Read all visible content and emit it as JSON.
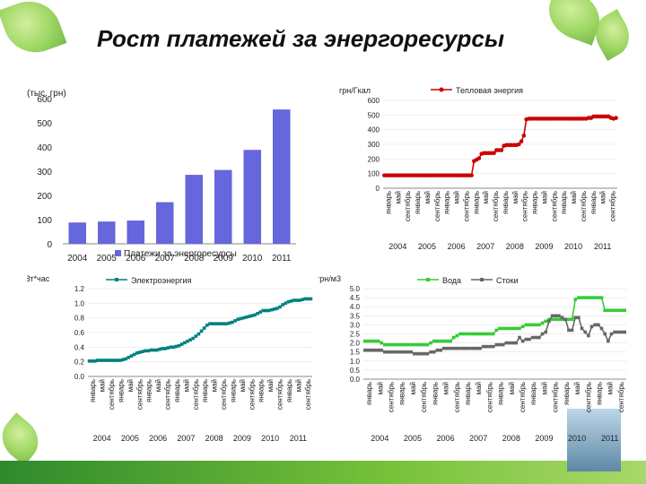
{
  "title": "Рост  платежей за энергоресурсы",
  "colors": {
    "bar": "#6666dd",
    "heat": "#cc0000",
    "elec": "#008080",
    "water": "#33cc33",
    "sewer": "#666666"
  },
  "chart_data": [
    {
      "type": "bar",
      "ylabel": "(тыс. грн)",
      "ylim": [
        0,
        600
      ],
      "yticks": [
        "0",
        "100",
        "200",
        "300",
        "400",
        "500",
        "600"
      ],
      "categories": [
        "2004",
        "2005",
        "2006",
        "2007",
        "2008",
        "2009",
        "2010",
        "2011"
      ],
      "series": [
        {
          "name": "Платежи за энергоресурсы",
          "values": [
            88,
            92,
            96,
            172,
            285,
            305,
            388,
            555
          ]
        }
      ]
    },
    {
      "type": "line",
      "ylabel": "грн/Гкал",
      "ylim": [
        0,
        600
      ],
      "yticks": [
        "0",
        "100",
        "200",
        "300",
        "400",
        "500",
        "600"
      ],
      "months": [
        "январь",
        "май",
        "сентябрь"
      ],
      "years": [
        "2004",
        "2005",
        "2006",
        "2007",
        "2008",
        "2009",
        "2010",
        "2011"
      ],
      "series": [
        {
          "name": "Тепловая энергия",
          "values": [
            88,
            88,
            88,
            88,
            88,
            88,
            88,
            88,
            88,
            88,
            88,
            88,
            88,
            88,
            88,
            88,
            88,
            88,
            88,
            88,
            88,
            88,
            88,
            88,
            88,
            88,
            88,
            88,
            88,
            88,
            88,
            88,
            88,
            88,
            88,
            88,
            185,
            195,
            205,
            235,
            240,
            240,
            240,
            240,
            240,
            260,
            260,
            260,
            290,
            295,
            295,
            295,
            295,
            295,
            300,
            320,
            360,
            470,
            475,
            475,
            475,
            475,
            475,
            475,
            475,
            475,
            475,
            475,
            475,
            475,
            475,
            475,
            475,
            475,
            475,
            475,
            475,
            475,
            475,
            475,
            475,
            475,
            480,
            480,
            490,
            490,
            490,
            490,
            490,
            490,
            490,
            480,
            475,
            480
          ]
        }
      ]
    },
    {
      "type": "line",
      "ylabel": "грн/кВт*час",
      "ylim": [
        0,
        1.2
      ],
      "yticks": [
        "0.0",
        "0.2",
        "0.4",
        "0.6",
        "0.8",
        "1.0",
        "1.2"
      ],
      "months": [
        "январь",
        "май",
        "сентябрь"
      ],
      "years": [
        "2004",
        "2005",
        "2006",
        "2007",
        "2008",
        "2009",
        "2010",
        "2011"
      ],
      "series": [
        {
          "name": "Электроэнергия",
          "values": [
            0.21,
            0.21,
            0.21,
            0.22,
            0.22,
            0.22,
            0.22,
            0.22,
            0.22,
            0.22,
            0.22,
            0.22,
            0.23,
            0.24,
            0.26,
            0.28,
            0.3,
            0.32,
            0.33,
            0.34,
            0.35,
            0.35,
            0.36,
            0.36,
            0.36,
            0.37,
            0.38,
            0.38,
            0.39,
            0.4,
            0.4,
            0.41,
            0.42,
            0.44,
            0.46,
            0.48,
            0.5,
            0.52,
            0.55,
            0.58,
            0.62,
            0.66,
            0.7,
            0.72,
            0.72,
            0.72,
            0.72,
            0.72,
            0.72,
            0.72,
            0.73,
            0.74,
            0.76,
            0.78,
            0.79,
            0.8,
            0.81,
            0.82,
            0.83,
            0.84,
            0.86,
            0.88,
            0.9,
            0.9,
            0.9,
            0.91,
            0.92,
            0.93,
            0.95,
            0.98,
            1.0,
            1.02,
            1.03,
            1.04,
            1.04,
            1.04,
            1.05,
            1.06,
            1.06,
            1.06
          ]
        }
      ]
    },
    {
      "type": "line",
      "ylabel": "грн/м3",
      "ylim": [
        0,
        5
      ],
      "yticks": [
        "0.0",
        "0.5",
        "1.0",
        "1.5",
        "2.0",
        "2.5",
        "3.0",
        "3.5",
        "4.0",
        "4.5",
        "5.0"
      ],
      "months": [
        "январь",
        "май",
        "сентябрь"
      ],
      "years": [
        "2004",
        "2005",
        "2006",
        "2007",
        "2008",
        "2009",
        "2010",
        "2011"
      ],
      "series": [
        {
          "name": "Вода",
          "values": [
            2.1,
            2.1,
            2.1,
            2.1,
            2.1,
            2.0,
            1.9,
            1.9,
            1.9,
            1.9,
            1.9,
            1.9,
            1.9,
            1.9,
            1.9,
            1.9,
            1.9,
            1.9,
            1.9,
            1.9,
            2.0,
            2.1,
            2.1,
            2.1,
            2.1,
            2.1,
            2.1,
            2.3,
            2.4,
            2.5,
            2.5,
            2.5,
            2.5,
            2.5,
            2.5,
            2.5,
            2.5,
            2.5,
            2.5,
            2.5,
            2.7,
            2.8,
            2.8,
            2.8,
            2.8,
            2.8,
            2.8,
            2.8,
            2.9,
            3.0,
            3.0,
            3.0,
            3.0,
            3.0,
            3.1,
            3.2,
            3.3,
            3.3,
            3.3,
            3.3,
            3.3,
            3.3,
            3.3,
            3.3,
            4.4,
            4.5,
            4.5,
            4.5,
            4.5,
            4.5,
            4.5,
            4.5,
            4.5,
            3.8,
            3.8,
            3.8,
            3.8,
            3.8,
            3.8,
            3.8
          ]
        },
        {
          "name": "Стоки",
          "values": [
            1.6,
            1.6,
            1.6,
            1.6,
            1.6,
            1.6,
            1.5,
            1.5,
            1.5,
            1.5,
            1.5,
            1.5,
            1.5,
            1.5,
            1.5,
            1.4,
            1.4,
            1.4,
            1.4,
            1.4,
            1.5,
            1.5,
            1.6,
            1.6,
            1.7,
            1.7,
            1.7,
            1.7,
            1.7,
            1.7,
            1.7,
            1.7,
            1.7,
            1.7,
            1.7,
            1.7,
            1.8,
            1.8,
            1.8,
            1.8,
            1.9,
            1.9,
            1.9,
            2.0,
            2.0,
            2.0,
            2.0,
            2.3,
            2.1,
            2.2,
            2.2,
            2.3,
            2.3,
            2.3,
            2.5,
            2.6,
            3.2,
            3.5,
            3.5,
            3.5,
            3.4,
            3.3,
            2.7,
            2.7,
            3.4,
            3.4,
            2.8,
            2.6,
            2.4,
            2.9,
            3.0,
            3.0,
            2.8,
            2.5,
            2.1,
            2.5,
            2.6,
            2.6,
            2.6,
            2.6
          ]
        }
      ]
    }
  ]
}
